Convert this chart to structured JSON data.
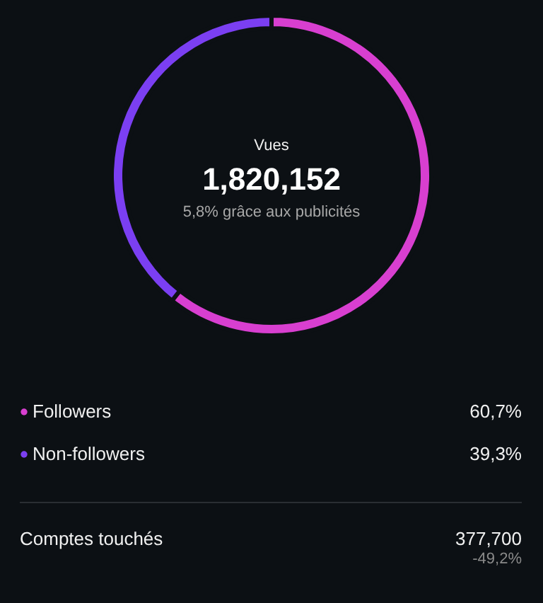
{
  "chart_data": {
    "type": "donut",
    "title": "Vues",
    "subtitle": "1,820,152",
    "categories": [
      "Followers",
      "Non-followers"
    ],
    "values": [
      60.7,
      39.3
    ],
    "colors": [
      "#d83fd0",
      "#7b3ff2"
    ],
    "value_labels": [
      "60,7%",
      "39,3%"
    ],
    "legend": "bottom",
    "annotations": [
      "5,8% grâce aux publicités",
      "Comptes touchés",
      "377,700",
      "-49,2%"
    ]
  }
}
